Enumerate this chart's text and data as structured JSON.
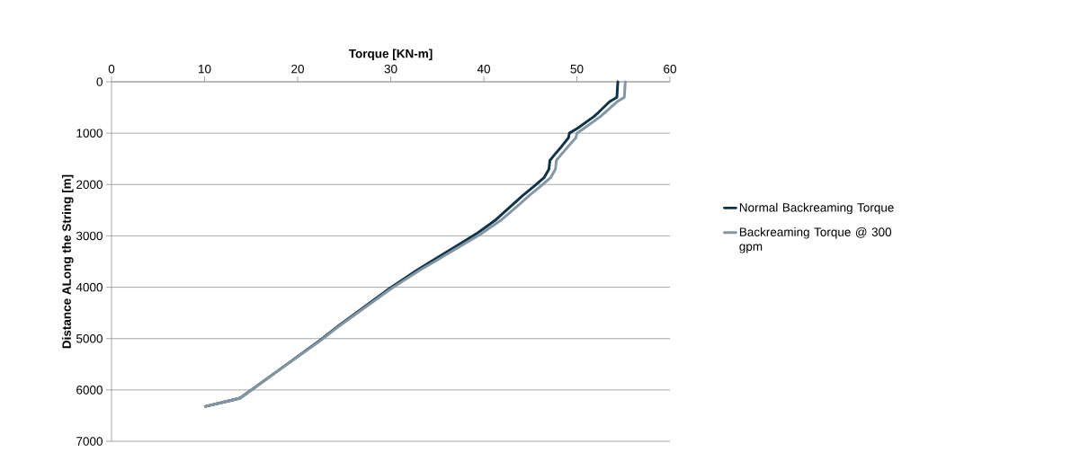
{
  "chart_data": {
    "type": "line",
    "xlabel": "Torque [KN-m]",
    "ylabel": "Distance ALong the String [m]",
    "xlim": [
      0,
      60
    ],
    "xticks": [
      0,
      10,
      20,
      30,
      40,
      50,
      60
    ],
    "ylim": [
      7000,
      0
    ],
    "yticks": [
      0,
      1000,
      2000,
      3000,
      4000,
      5000,
      6000,
      7000
    ],
    "grid": "y",
    "legend": "right",
    "marker": "none",
    "line_style": "solid",
    "series": [
      {
        "name": "Normal Backreaming Torque",
        "color": "#0d3349",
        "x": [
          54.4,
          54.3,
          53.5,
          52.3,
          51.8,
          50.1,
          49.2,
          49.1,
          48.4,
          47.6,
          47.1,
          47.0,
          46.5,
          45.5,
          44.2,
          43.1,
          41.2,
          39.2,
          34.4,
          32.8,
          29.9,
          24.4,
          22.5,
          17.7,
          13.8,
          12.2,
          10.1
        ],
        "values": [
          0,
          300,
          390,
          600,
          680,
          900,
          1000,
          1090,
          1250,
          1420,
          1530,
          1700,
          1860,
          2020,
          2210,
          2390,
          2700,
          2960,
          3490,
          3670,
          4020,
          4750,
          5020,
          5650,
          6160,
          6230,
          6320
        ]
      },
      {
        "name": "Backreaming Torque @ 300 gpm",
        "color": "#8496a2",
        "x": [
          55.2,
          55.1,
          54.3,
          53.0,
          52.5,
          50.8,
          50.0,
          49.9,
          49.1,
          48.3,
          47.8,
          47.7,
          47.2,
          46.2,
          44.9,
          43.8,
          41.8,
          39.7,
          34.8,
          33.1,
          30.1,
          24.5,
          22.6,
          17.7,
          13.8,
          12.2,
          10.1
        ],
        "values": [
          0,
          300,
          390,
          600,
          680,
          900,
          1000,
          1090,
          1250,
          1420,
          1530,
          1700,
          1860,
          2020,
          2210,
          2390,
          2700,
          2960,
          3490,
          3670,
          4020,
          4750,
          5020,
          5650,
          6160,
          6230,
          6320
        ]
      }
    ]
  }
}
